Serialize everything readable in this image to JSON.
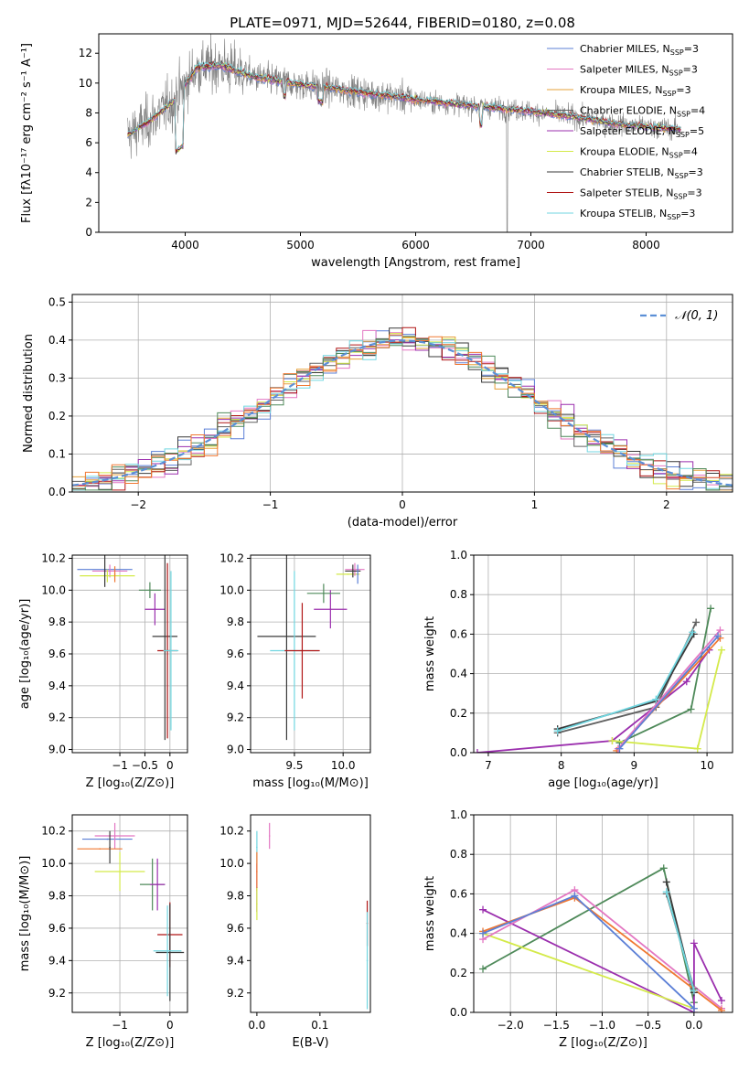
{
  "figure": {
    "title": "PLATE=0971, MJD=52644, FIBERID=0180, z=0.08"
  },
  "colors": {
    "chabrier_miles": "#5b7fd6",
    "salpeter_miles": "#e377c2",
    "kroupa_miles": "#e6a03a",
    "chabrier_elodie": "#606060",
    "salpeter_elodie": "#9b2fae",
    "kroupa_elodie": "#d4ea4a",
    "chabrier_stelib": "#3a3a3a",
    "salpeter_stelib": "#b01515",
    "kroupa_stelib": "#70d6e0",
    "orange": "#f07832",
    "green": "#4f8a5a",
    "gauss": "#5b8fd6"
  },
  "chart_data": [
    {
      "id": "spectrum",
      "type": "line",
      "xlabel": "wavelength [Angstrom, rest frame]",
      "ylabel": "Flux [fλ10⁻¹⁷ erg cm⁻² s⁻¹ A⁻¹]",
      "xlim": [
        3250,
        8750
      ],
      "ylim": [
        0,
        13.3
      ],
      "xticks": [
        4000,
        5000,
        6000,
        7000,
        8000
      ],
      "yticks": [
        0,
        2,
        4,
        6,
        8,
        10,
        12
      ],
      "legend_position": "top-right",
      "legend": [
        {
          "label": "Chabrier MILES, N",
          "sub": "SSP",
          "suffix": "=3",
          "color_key": "chabrier_miles"
        },
        {
          "label": "Salpeter MILES, N",
          "sub": "SSP",
          "suffix": "=3",
          "color_key": "salpeter_miles"
        },
        {
          "label": "Kroupa MILES, N",
          "sub": "SSP",
          "suffix": "=3",
          "color_key": "kroupa_miles"
        },
        {
          "label": "Chabrier ELODIE, N",
          "sub": "SSP",
          "suffix": "=4",
          "color_key": "chabrier_elodie"
        },
        {
          "label": "Salpeter ELODIE, N",
          "sub": "SSP",
          "suffix": "=5",
          "color_key": "salpeter_elodie"
        },
        {
          "label": "Kroupa ELODIE, N",
          "sub": "SSP",
          "suffix": "=4",
          "color_key": "kroupa_elodie"
        },
        {
          "label": "Chabrier STELIB, N",
          "sub": "SSP",
          "suffix": "=3",
          "color_key": "chabrier_stelib"
        },
        {
          "label": "Salpeter STELIB, N",
          "sub": "SSP",
          "suffix": "=3",
          "color_key": "salpeter_stelib"
        },
        {
          "label": "Kroupa STELIB, N",
          "sub": "SSP",
          "suffix": "=3",
          "color_key": "kroupa_stelib"
        }
      ],
      "data_envelope": {
        "x": [
          3500,
          3700,
          3900,
          4100,
          4300,
          4600,
          5000,
          5400,
          5800,
          6200,
          6600,
          7000,
          7400,
          7800,
          8300
        ],
        "y": [
          6.5,
          7.5,
          8.8,
          11.0,
          11.2,
          10.4,
          9.9,
          9.5,
          9.1,
          8.7,
          8.4,
          8.1,
          7.7,
          7.2,
          6.9
        ]
      }
    },
    {
      "id": "residuals",
      "type": "line",
      "xlabel": "(data-model)/error",
      "ylabel": "Normed distribution",
      "xlim": [
        -2.5,
        2.5
      ],
      "ylim": [
        0,
        0.52
      ],
      "xticks": [
        -2,
        -1,
        0,
        1,
        2
      ],
      "yticks": [
        0.0,
        0.1,
        0.2,
        0.3,
        0.4,
        0.5
      ],
      "grid": true,
      "legend_position": "top-right",
      "gauss_legend": "𝒩(0, 1)",
      "bin_width": 0.1
    },
    {
      "id": "age_vs_Z",
      "type": "scatter",
      "xlabel": "Z [log₁₀(Z/Z⊙)]",
      "ylabel": "age  [log₁₀(age/yr)]",
      "xlim": [
        -1.95,
        0.35
      ],
      "ylim": [
        8.98,
        10.22
      ],
      "xticks": [
        -1,
        -0.5,
        0
      ],
      "xticklabels": [
        "−1",
        "−0.5",
        "0"
      ],
      "yticks": [
        9.0,
        9.2,
        9.4,
        9.6,
        9.8,
        10.0,
        10.2
      ],
      "grid": true,
      "points": [
        {
          "x": -1.3,
          "y": 10.13,
          "xe": 0.55,
          "ye": 0.0,
          "c": "chabrier_miles"
        },
        {
          "x": -1.2,
          "y": 10.12,
          "xe": 0.35,
          "ye": 0.04,
          "c": "salpeter_miles"
        },
        {
          "x": -1.25,
          "y": 10.09,
          "xe": 0.55,
          "ye": 0.04,
          "c": "kroupa_elodie"
        },
        {
          "x": -1.1,
          "y": 10.1,
          "xe": 0.0,
          "ye": 0.05,
          "c": "orange"
        },
        {
          "x": -1.3,
          "y": 10.12,
          "xe": 0.0,
          "ye": 0.1,
          "c": "chabrier_stelib"
        },
        {
          "x": -0.4,
          "y": 10.0,
          "xe": 0.22,
          "ye": 0.05,
          "c": "green"
        },
        {
          "x": -0.3,
          "y": 9.88,
          "xe": 0.2,
          "ye": 0.1,
          "c": "salpeter_elodie"
        },
        {
          "x": -0.1,
          "y": 9.71,
          "xe": 0.25,
          "ye": 0.65,
          "c": "chabrier_stelib"
        },
        {
          "x": -0.05,
          "y": 9.62,
          "xe": 0.2,
          "ye": 0.55,
          "c": "salpeter_stelib"
        },
        {
          "x": 0.02,
          "y": 9.62,
          "xe": 0.15,
          "ye": 0.5,
          "c": "kroupa_stelib"
        }
      ]
    },
    {
      "id": "age_vs_mass",
      "type": "scatter",
      "xlabel": "mass [log₁₀(M/M⊙)]",
      "ylabel": "",
      "xlim": [
        9.05,
        10.28
      ],
      "ylim": [
        8.98,
        10.22
      ],
      "xticks": [
        9.5,
        10.0
      ],
      "yticks": [
        9.0,
        9.2,
        9.4,
        9.6,
        9.8,
        10.0,
        10.2
      ],
      "grid": true,
      "points": [
        {
          "x": 9.42,
          "y": 9.71,
          "xe": 0.3,
          "ye": 0.65,
          "c": "chabrier_stelib"
        },
        {
          "x": 9.5,
          "y": 9.62,
          "xe": 0.25,
          "ye": 0.5,
          "c": "kroupa_stelib"
        },
        {
          "x": 9.58,
          "y": 9.62,
          "xe": 0.18,
          "ye": 0.3,
          "c": "salpeter_stelib"
        },
        {
          "x": 9.87,
          "y": 9.88,
          "xe": 0.17,
          "ye": 0.12,
          "c": "salpeter_elodie"
        },
        {
          "x": 9.8,
          "y": 9.98,
          "xe": 0.17,
          "ye": 0.06,
          "c": "green"
        },
        {
          "x": 10.05,
          "y": 10.1,
          "xe": 0.12,
          "ye": 0.0,
          "c": "kroupa_elodie"
        },
        {
          "x": 10.12,
          "y": 10.13,
          "xe": 0.1,
          "ye": 0.04,
          "c": "salpeter_miles"
        },
        {
          "x": 10.1,
          "y": 10.12,
          "xe": 0.08,
          "ye": 0.04,
          "c": "chabrier_stelib"
        },
        {
          "x": 10.15,
          "y": 10.1,
          "xe": 0.0,
          "ye": 0.06,
          "c": "chabrier_miles"
        }
      ]
    },
    {
      "id": "weight_vs_age",
      "type": "line",
      "xlabel": "age  [log₁₀(age/yr)]",
      "ylabel": "mass weight",
      "xlim": [
        6.8,
        10.35
      ],
      "ylim": [
        0,
        1
      ],
      "xticks": [
        7,
        8,
        9,
        10
      ],
      "yticks": [
        0.0,
        0.2,
        0.4,
        0.6,
        0.8,
        1.0
      ],
      "grid": true,
      "series": [
        {
          "c": "chabrier_elodie",
          "x": [
            7.95,
            9.3,
            9.85
          ],
          "y": [
            0.1,
            0.23,
            0.66
          ]
        },
        {
          "c": "chabrier_stelib",
          "x": [
            7.95,
            9.3,
            9.82
          ],
          "y": [
            0.12,
            0.26,
            0.6
          ]
        },
        {
          "c": "kroupa_stelib",
          "x": [
            7.95,
            9.3,
            9.8
          ],
          "y": [
            0.11,
            0.27,
            0.61
          ]
        },
        {
          "c": "green",
          "x": [
            8.8,
            9.78,
            10.05
          ],
          "y": [
            0.05,
            0.22,
            0.73
          ]
        },
        {
          "c": "salpeter_elodie",
          "x": [
            6.85,
            8.7,
            9.72,
            10.03
          ],
          "y": [
            0.0,
            0.06,
            0.36,
            0.52
          ]
        },
        {
          "c": "kroupa_elodie",
          "x": [
            8.7,
            9.87,
            10.2
          ],
          "y": [
            0.06,
            0.02,
            0.52
          ]
        },
        {
          "c": "orange",
          "x": [
            8.76,
            10.18
          ],
          "y": [
            0.01,
            0.58
          ]
        },
        {
          "c": "salpeter_miles",
          "x": [
            8.78,
            10.18
          ],
          "y": [
            0.02,
            0.62
          ]
        },
        {
          "c": "chabrier_miles",
          "x": [
            8.8,
            10.15
          ],
          "y": [
            0.02,
            0.59
          ]
        }
      ]
    },
    {
      "id": "mass_vs_Z",
      "type": "scatter",
      "xlabel": "Z [log₁₀(Z/Z⊙)]",
      "ylabel": "mass [log₁₀(M/M⊙)]",
      "xlim": [
        -1.95,
        0.35
      ],
      "ylim": [
        9.08,
        10.3
      ],
      "xticks": [
        -1,
        0
      ],
      "xticklabels": [
        "−1",
        "0"
      ],
      "yticks": [
        9.2,
        9.4,
        9.6,
        9.8,
        10.0,
        10.2
      ],
      "grid": true,
      "points": [
        {
          "x": -1.25,
          "y": 10.15,
          "xe": 0.5,
          "ye": 0.0,
          "c": "chabrier_miles"
        },
        {
          "x": -1.1,
          "y": 10.17,
          "xe": 0.4,
          "ye": 0.08,
          "c": "salpeter_miles"
        },
        {
          "x": -1.4,
          "y": 10.09,
          "xe": 0.45,
          "ye": 0.0,
          "c": "orange"
        },
        {
          "x": -1.2,
          "y": 10.1,
          "xe": 0.0,
          "ye": 0.1,
          "c": "chabrier_stelib"
        },
        {
          "x": -1.0,
          "y": 9.95,
          "xe": 0.5,
          "ye": 0.12,
          "c": "kroupa_elodie"
        },
        {
          "x": -0.35,
          "y": 9.87,
          "xe": 0.25,
          "ye": 0.16,
          "c": "green"
        },
        {
          "x": -0.25,
          "y": 9.87,
          "xe": 0.15,
          "ye": 0.16,
          "c": "salpeter_elodie"
        },
        {
          "x": 0.0,
          "y": 9.56,
          "xe": 0.25,
          "ye": 0.2,
          "c": "salpeter_stelib"
        },
        {
          "x": 0.0,
          "y": 9.45,
          "xe": 0.28,
          "ye": 0.3,
          "c": "chabrier_stelib"
        },
        {
          "x": -0.05,
          "y": 9.46,
          "xe": 0.28,
          "ye": 0.28,
          "c": "kroupa_stelib"
        }
      ]
    },
    {
      "id": "mass_vs_ebv",
      "type": "scatter",
      "xlabel": "E(B-V)",
      "ylabel": "",
      "xlim": [
        -0.01,
        0.18
      ],
      "ylim": [
        9.08,
        10.3
      ],
      "xticks": [
        0.0,
        0.1
      ],
      "yticks": [
        9.2,
        9.4,
        9.6,
        9.8,
        10.0,
        10.2
      ],
      "grid": false,
      "points": [
        {
          "x": 0.0,
          "y": 10.1,
          "xe": 0.0,
          "ye": 0.1,
          "c": "kroupa_stelib"
        },
        {
          "x": 0.0,
          "y": 9.85,
          "xe": 0.0,
          "ye": 0.15,
          "c": "salpeter_elodie"
        },
        {
          "x": 0.0,
          "y": 9.95,
          "xe": 0.0,
          "ye": 0.12,
          "c": "orange"
        },
        {
          "x": 0.0,
          "y": 9.75,
          "xe": 0.0,
          "ye": 0.1,
          "c": "kroupa_elodie"
        },
        {
          "x": 0.02,
          "y": 10.17,
          "xe": 0.0,
          "ye": 0.08,
          "c": "salpeter_miles"
        },
        {
          "x": 0.175,
          "y": 9.63,
          "xe": 0.0,
          "ye": 0.14,
          "c": "salpeter_stelib"
        },
        {
          "x": 0.175,
          "y": 9.4,
          "xe": 0.0,
          "ye": 0.3,
          "c": "kroupa_stelib"
        }
      ]
    },
    {
      "id": "weight_vs_Z",
      "type": "line",
      "xlabel": "Z [log₁₀(Z/Z⊙)]",
      "ylabel": "mass weight",
      "xlim": [
        -2.4,
        0.42
      ],
      "ylim": [
        0,
        1
      ],
      "xticks": [
        -2.0,
        -1.5,
        -1.0,
        -0.5,
        0.0
      ],
      "xticklabels": [
        "−2.0",
        "−1.5",
        "−1.0",
        "−0.5",
        "0.0"
      ],
      "yticks": [
        0.0,
        0.2,
        0.4,
        0.6,
        0.8,
        1.0
      ],
      "grid": true,
      "series": [
        {
          "c": "green",
          "x": [
            -2.3,
            -0.33,
            0.0
          ],
          "y": [
            0.22,
            0.73,
            0.05
          ]
        },
        {
          "c": "salpeter_elodie",
          "x": [
            -2.3,
            0.0,
            0.0,
            0.3
          ],
          "y": [
            0.52,
            0.0,
            0.35,
            0.06
          ]
        },
        {
          "c": "kroupa_elodie",
          "x": [
            -2.3,
            0.0
          ],
          "y": [
            0.4,
            0.02
          ]
        },
        {
          "c": "salpeter_miles",
          "x": [
            -2.3,
            -1.3,
            0.3
          ],
          "y": [
            0.37,
            0.62,
            0.02
          ]
        },
        {
          "c": "orange",
          "x": [
            -2.3,
            -1.3,
            0.3
          ],
          "y": [
            0.41,
            0.58,
            0.01
          ]
        },
        {
          "c": "chabrier_miles",
          "x": [
            -2.3,
            -1.3,
            0.0
          ],
          "y": [
            0.4,
            0.59,
            0.02
          ]
        },
        {
          "c": "chabrier_stelib",
          "x": [
            -0.3,
            0.0
          ],
          "y": [
            0.66,
            0.1
          ]
        },
        {
          "c": "chabrier_elodie",
          "x": [
            -0.3,
            0.0
          ],
          "y": [
            0.6,
            0.12
          ]
        },
        {
          "c": "kroupa_stelib",
          "x": [
            -0.3,
            0.0
          ],
          "y": [
            0.61,
            0.11
          ]
        }
      ]
    }
  ]
}
